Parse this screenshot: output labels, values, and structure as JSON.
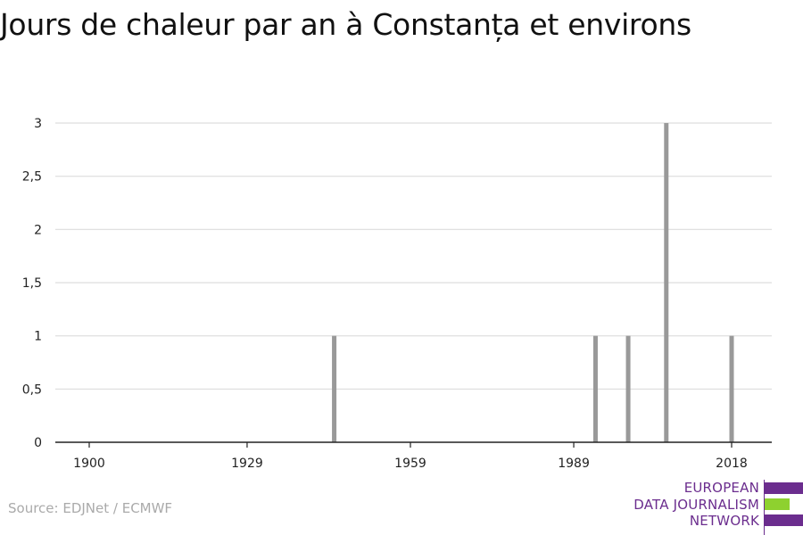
{
  "title": "Jours de chaleur par an à Constanța et environs",
  "source": "Source: EDJNet / ECMWF",
  "logo": {
    "lines": [
      "EUROPEAN",
      "DATA JOURNALISM",
      "NETWORK"
    ],
    "colors": {
      "purple": "#6b2d8e",
      "green": "#8ed12f"
    }
  },
  "chart_data": {
    "type": "bar",
    "title": "Jours de chaleur par an à Constanța et environs",
    "xlabel": "",
    "ylabel": "",
    "xlim": [
      1900,
      2018
    ],
    "ylim": [
      0,
      3
    ],
    "x_ticks": [
      "1900",
      "1929",
      "1959",
      "1989",
      "2018"
    ],
    "x_tick_values": [
      1900,
      1929,
      1959,
      1989,
      2018
    ],
    "y_ticks": [
      "0",
      "0,5",
      "1",
      "1,5",
      "2",
      "2,5",
      "3"
    ],
    "y_tick_values": [
      0,
      0.5,
      1,
      1.5,
      2,
      2.5,
      3
    ],
    "grid": true,
    "bar_color": "#999999",
    "series": [
      {
        "points": [
          {
            "x": 1945,
            "y": 1
          },
          {
            "x": 1993,
            "y": 1
          },
          {
            "x": 1999,
            "y": 1
          },
          {
            "x": 2006,
            "y": 3
          },
          {
            "x": 2018,
            "y": 1
          }
        ]
      }
    ]
  }
}
